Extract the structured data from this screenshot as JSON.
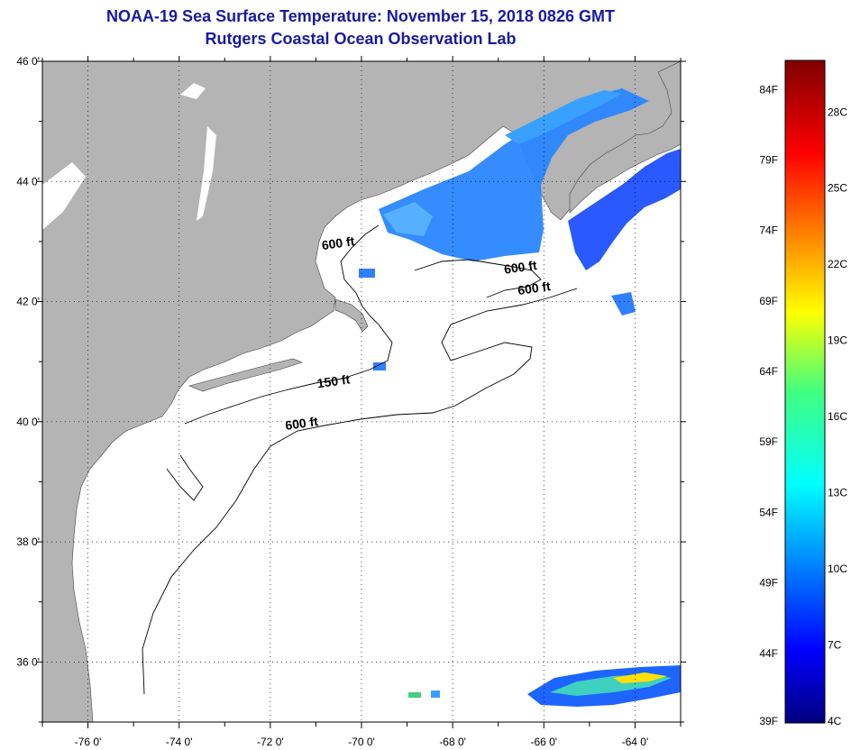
{
  "header": {
    "title": "NOAA-19 Sea Surface Temperature:  November 15, 2018 0826 GMT",
    "subtitle": "Rutgers Coastal Ocean Observation Lab"
  },
  "colors": {
    "land": "#b4b4b4",
    "ocean": "#ffffff",
    "title_text": "#1a1aa0",
    "contour": "#000000",
    "sst_cold": "#1e64ff",
    "sst_mid": "#3aa0ff",
    "sst_warm": "#ffe000"
  },
  "map": {
    "lat_labels": [
      "46 0'",
      "44 0'",
      "42 0'",
      "40 0'",
      "38 0'",
      "36 0'"
    ],
    "lat_values": [
      46,
      44,
      42,
      40,
      38,
      36
    ],
    "lon_labels": [
      "-76 0'",
      "-74 0'",
      "-72 0'",
      "-70 0'",
      "-68 0'",
      "-66 0'",
      "-64 0'"
    ],
    "lon_values": [
      -76,
      -74,
      -72,
      -70,
      -68,
      -66,
      -64
    ],
    "lon_range": [
      -77,
      -63
    ],
    "lat_range": [
      35,
      46
    ],
    "grid": "dotted",
    "contour_labels": [
      {
        "text": "600 ft",
        "lon": -70.5,
        "lat": 42.9
      },
      {
        "text": "600 ft",
        "lon": -66.5,
        "lat": 42.5
      },
      {
        "text": "600 ft",
        "lon": -66.2,
        "lat": 42.15
      },
      {
        "text": "150 ft",
        "lon": -70.6,
        "lat": 40.6
      },
      {
        "text": "600 ft",
        "lon": -71.3,
        "lat": 39.9
      }
    ]
  },
  "colorbar": {
    "fahrenheit_labels": [
      "84F",
      "79F",
      "74F",
      "69F",
      "64F",
      "59F",
      "54F",
      "49F",
      "44F",
      "39F"
    ],
    "celsius_labels": [
      "28C",
      "25C",
      "22C",
      "19C",
      "16C",
      "13C",
      "10C",
      "7C",
      "4C"
    ],
    "min_f": 39,
    "max_f": 86,
    "colormap": "jet"
  }
}
